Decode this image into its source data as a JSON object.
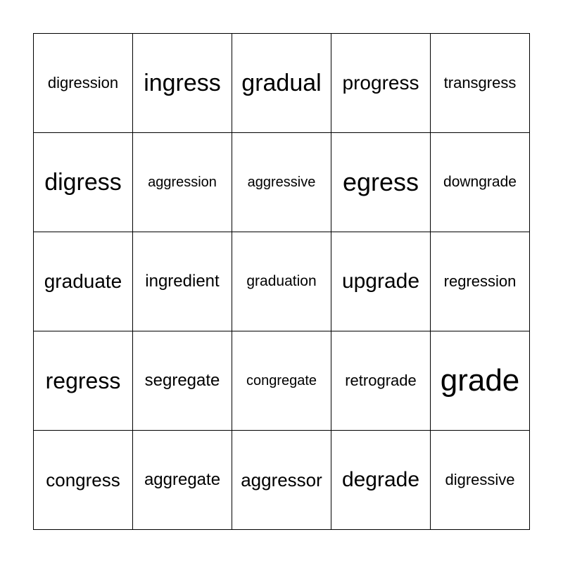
{
  "card": {
    "rows": [
      [
        "digression",
        "ingress",
        "gradual",
        "progress",
        "transgress"
      ],
      [
        "digress",
        "aggression",
        "aggressive",
        "egress",
        "downgrade"
      ],
      [
        "graduate",
        "ingredient",
        "graduation",
        "upgrade",
        "regression"
      ],
      [
        "regress",
        "segregate",
        "congregate",
        "retrograde",
        "grade"
      ],
      [
        "congress",
        "aggregate",
        "aggressor",
        "degrade",
        "digressive"
      ]
    ]
  }
}
